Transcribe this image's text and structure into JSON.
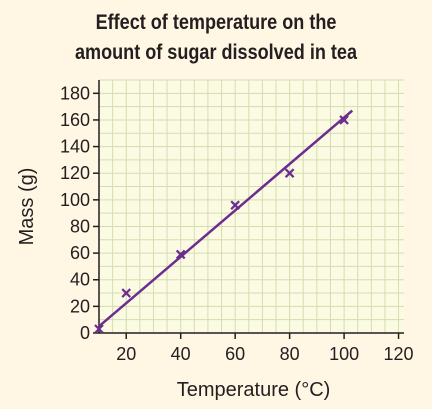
{
  "colors": {
    "background": "#fff6e3",
    "plot_background": "#fbfbe3",
    "grid": "#d6dcb0",
    "axis": "#231f20",
    "series": "#6b2d8e"
  },
  "chart_data": {
    "type": "scatter",
    "title": [
      "Effect of temperature on the",
      "amount of sugar dissolved in tea"
    ],
    "xlabel": "Temperature (°C)",
    "ylabel": "Mass (g)",
    "xlim": [
      10,
      122
    ],
    "ylim": [
      0,
      190
    ],
    "xticks": [
      20,
      40,
      60,
      80,
      100,
      120
    ],
    "yticks": [
      0,
      20,
      40,
      60,
      80,
      100,
      120,
      140,
      160,
      180
    ],
    "grid": true,
    "points": [
      {
        "x": 10,
        "y": 3
      },
      {
        "x": 20,
        "y": 30
      },
      {
        "x": 40,
        "y": 59
      },
      {
        "x": 60,
        "y": 96
      },
      {
        "x": 80,
        "y": 120
      },
      {
        "x": 100,
        "y": 160
      }
    ],
    "best_fit_line": {
      "x": [
        10,
        103
      ],
      "y": [
        5,
        167
      ]
    }
  }
}
